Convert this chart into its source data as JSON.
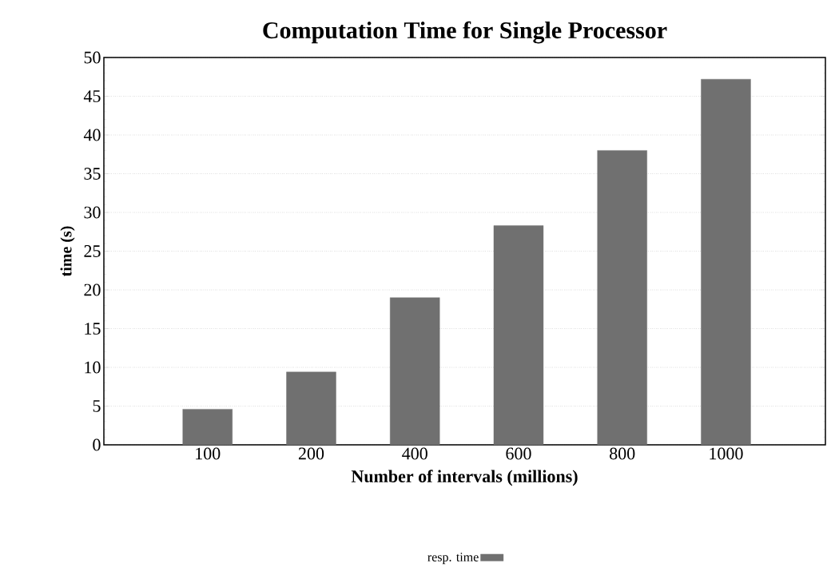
{
  "chart_data": {
    "type": "bar",
    "title": "Computation Time for Single Processor",
    "xlabel": "Number of intervals (millions)",
    "ylabel": "time (s)",
    "categories": [
      "100",
      "200",
      "400",
      "600",
      "800",
      "1000"
    ],
    "series": [
      {
        "name": "resp. time",
        "color": "#707070",
        "values": [
          4.6,
          9.4,
          19.0,
          28.3,
          38.0,
          47.2
        ]
      }
    ],
    "ylim": [
      0,
      50
    ],
    "yticks": [
      0,
      5,
      10,
      15,
      20,
      25,
      30,
      35,
      40,
      45,
      50
    ],
    "grid": "y",
    "legend": "bottom"
  }
}
